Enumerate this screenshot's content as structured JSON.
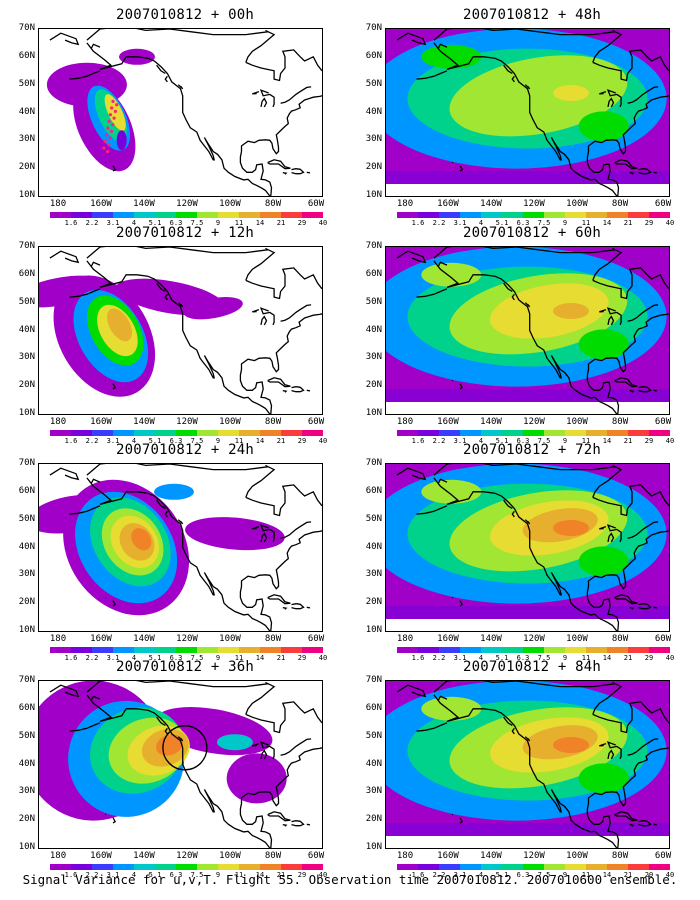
{
  "caption": "Signal Variance for u,v,T. Flight 55. Observation time 2007010812. 2007010600 ensemble.",
  "axes": {
    "y_labels": [
      "70N",
      "60N",
      "50N",
      "40N",
      "30N",
      "20N",
      "10N"
    ],
    "x_labels": [
      "180",
      "160W",
      "140W",
      "120W",
      "100W",
      "80W",
      "60W"
    ]
  },
  "colorbar": {
    "labels": [
      "1.6",
      "2.2",
      "3.1",
      "4",
      "5.1",
      "6.3",
      "7.5",
      "9",
      "11",
      "14",
      "21",
      "29",
      "40"
    ],
    "colors": [
      "#a000c8",
      "#7800dc",
      "#3c3cff",
      "#0096ff",
      "#00c8c8",
      "#00d28c",
      "#00dc00",
      "#a0e632",
      "#e6dc32",
      "#e6af2d",
      "#f08228",
      "#fa3c3c",
      "#f00082"
    ]
  },
  "coastline_color": "#000000",
  "panels": [
    {
      "title": "2007010812 + 00h",
      "column": "left",
      "row": 0,
      "intensity": 0.1,
      "markers": true,
      "circle": false
    },
    {
      "title": "2007010812 + 48h",
      "column": "right",
      "row": 0,
      "intensity": 0.55,
      "markers": false,
      "circle": false
    },
    {
      "title": "2007010812 + 12h",
      "column": "left",
      "row": 1,
      "intensity": 0.25,
      "markers": false,
      "circle": false
    },
    {
      "title": "2007010812 + 60h",
      "column": "right",
      "row": 1,
      "intensity": 0.65,
      "markers": false,
      "circle": false
    },
    {
      "title": "2007010812 + 24h",
      "column": "left",
      "row": 2,
      "intensity": 0.38,
      "markers": false,
      "circle": false
    },
    {
      "title": "2007010812 + 72h",
      "column": "right",
      "row": 2,
      "intensity": 0.75,
      "markers": false,
      "circle": false
    },
    {
      "title": "2007010812 + 36h",
      "column": "left",
      "row": 3,
      "intensity": 0.48,
      "markers": false,
      "circle": true
    },
    {
      "title": "2007010812 + 84h",
      "column": "right",
      "row": 3,
      "intensity": 0.85,
      "markers": false,
      "circle": false
    }
  ]
}
